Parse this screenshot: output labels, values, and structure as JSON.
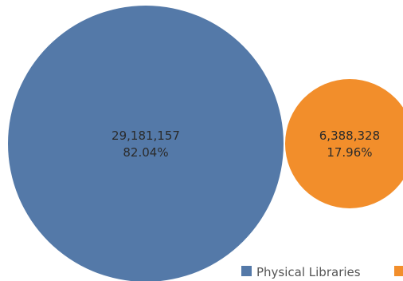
{
  "chart_data": {
    "type": "bubble",
    "categories": [
      "Physical Libraries",
      ""
    ],
    "values": [
      29181157,
      6388328
    ],
    "value_labels": [
      "29,181,157",
      "6,388,328"
    ],
    "percent_labels": [
      "82.04%",
      "17.96%"
    ],
    "colors": [
      "#5479a8",
      "#f28e2b"
    ],
    "legend": {
      "position": "bottom-right",
      "entries": [
        "Physical Libraries",
        ""
      ]
    }
  }
}
